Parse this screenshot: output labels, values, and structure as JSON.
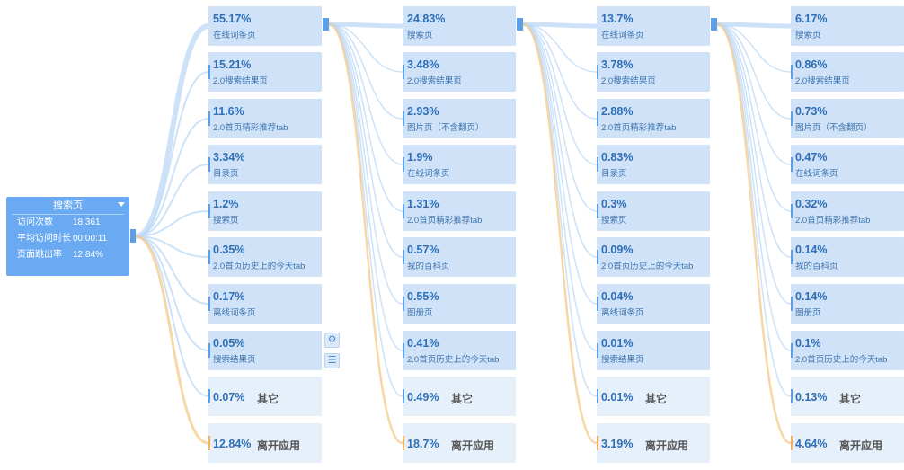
{
  "root": {
    "title": "搜索页",
    "metrics": [
      {
        "label": "访问次数",
        "value": "18,361"
      },
      {
        "label": "平均访问时长",
        "value": "00:00:11"
      },
      {
        "label": "页面跳出率",
        "value": "12.84%"
      }
    ]
  },
  "columns": [
    {
      "items": [
        {
          "pct": "55.17%",
          "label": "在线词条页"
        },
        {
          "pct": "15.21%",
          "label": "2.0搜索结果页"
        },
        {
          "pct": "11.6%",
          "label": "2.0首页精彩推荐tab"
        },
        {
          "pct": "3.34%",
          "label": "目录页"
        },
        {
          "pct": "1.2%",
          "label": "搜索页"
        },
        {
          "pct": "0.35%",
          "label": "2.0首页历史上的今天tab"
        },
        {
          "pct": "0.17%",
          "label": "离线词条页"
        },
        {
          "pct": "0.05%",
          "label": "搜索结果页"
        }
      ],
      "other": {
        "pct": "0.07%",
        "label": "其它"
      },
      "exit": {
        "pct": "12.84%",
        "label": "离开应用"
      }
    },
    {
      "items": [
        {
          "pct": "24.83%",
          "label": "搜索页"
        },
        {
          "pct": "3.48%",
          "label": "2.0搜索结果页"
        },
        {
          "pct": "2.93%",
          "label": "图片页（不含翻页）"
        },
        {
          "pct": "1.9%",
          "label": "在线词条页"
        },
        {
          "pct": "1.31%",
          "label": "2.0首页精彩推荐tab"
        },
        {
          "pct": "0.57%",
          "label": "我的百科页"
        },
        {
          "pct": "0.55%",
          "label": "图册页"
        },
        {
          "pct": "0.41%",
          "label": "2.0首页历史上的今天tab"
        }
      ],
      "other": {
        "pct": "0.49%",
        "label": "其它"
      },
      "exit": {
        "pct": "18.7%",
        "label": "离开应用"
      }
    },
    {
      "items": [
        {
          "pct": "13.7%",
          "label": "在线词条页"
        },
        {
          "pct": "3.78%",
          "label": "2.0搜索结果页"
        },
        {
          "pct": "2.88%",
          "label": "2.0首页精彩推荐tab"
        },
        {
          "pct": "0.83%",
          "label": "目录页"
        },
        {
          "pct": "0.3%",
          "label": "搜索页"
        },
        {
          "pct": "0.09%",
          "label": "2.0首页历史上的今天tab"
        },
        {
          "pct": "0.04%",
          "label": "离线词条页"
        },
        {
          "pct": "0.01%",
          "label": "搜索结果页"
        }
      ],
      "other": {
        "pct": "0.01%",
        "label": "其它"
      },
      "exit": {
        "pct": "3.19%",
        "label": "离开应用"
      }
    },
    {
      "items": [
        {
          "pct": "6.17%",
          "label": "搜索页"
        },
        {
          "pct": "0.86%",
          "label": "2.0搜索结果页"
        },
        {
          "pct": "0.73%",
          "label": "图片页（不含翻页）"
        },
        {
          "pct": "0.47%",
          "label": "在线词条页"
        },
        {
          "pct": "0.32%",
          "label": "2.0首页精彩推荐tab"
        },
        {
          "pct": "0.14%",
          "label": "我的百科页"
        },
        {
          "pct": "0.14%",
          "label": "图册页"
        },
        {
          "pct": "0.1%",
          "label": "2.0首页历史上的今天tab"
        }
      ],
      "other": {
        "pct": "0.13%",
        "label": "其它"
      },
      "exit": {
        "pct": "4.64%",
        "label": "离开应用"
      }
    }
  ],
  "icons": {
    "settings": "gear-icon",
    "list": "list-icon"
  },
  "colors": {
    "flow": "#bcd8f6",
    "exit_flow": "#f5c98a",
    "card": "#cfe2f8",
    "accent": "#5a9fe8"
  }
}
